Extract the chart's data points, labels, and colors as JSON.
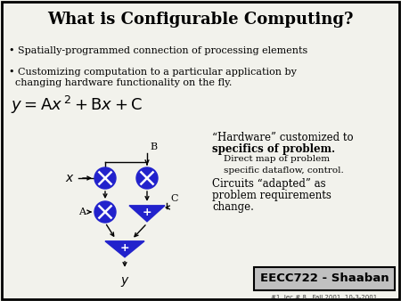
{
  "title": "What is Configurable Computing?",
  "bullet1": "• Spatially-programmed connection of processing elements",
  "bullet2": "• Customizing computation to a particular application by\n  changing hardware functionality on the fly.",
  "equation": "$y = \\mathrm{A}x^{\\,2} + \\mathrm{B}x + \\mathrm{C}$",
  "quote_line1": "“Hardware” customized to",
  "quote_line2": "specifics of problem.",
  "quote_line3": "    Direct map of problem",
  "quote_line4": "    specific dataflow, control.",
  "quote_line5": "Circuits “adapted” as",
  "quote_line6": "problem requirements",
  "quote_line7": "change.",
  "footer_main": "EECC722 - Shaaban",
  "footer_sub": "#1  lec # 8   Fall 2001  10-3-2001",
  "bg_color": "#f2f2ec",
  "border_color": "#000000",
  "blue_color": "#2222cc",
  "text_color": "#000000",
  "footer_bg": "#c0c0c0",
  "eq_fontsize": 13,
  "title_fontsize": 13,
  "bullet_fontsize": 8,
  "quote_fontsize": 8.5
}
